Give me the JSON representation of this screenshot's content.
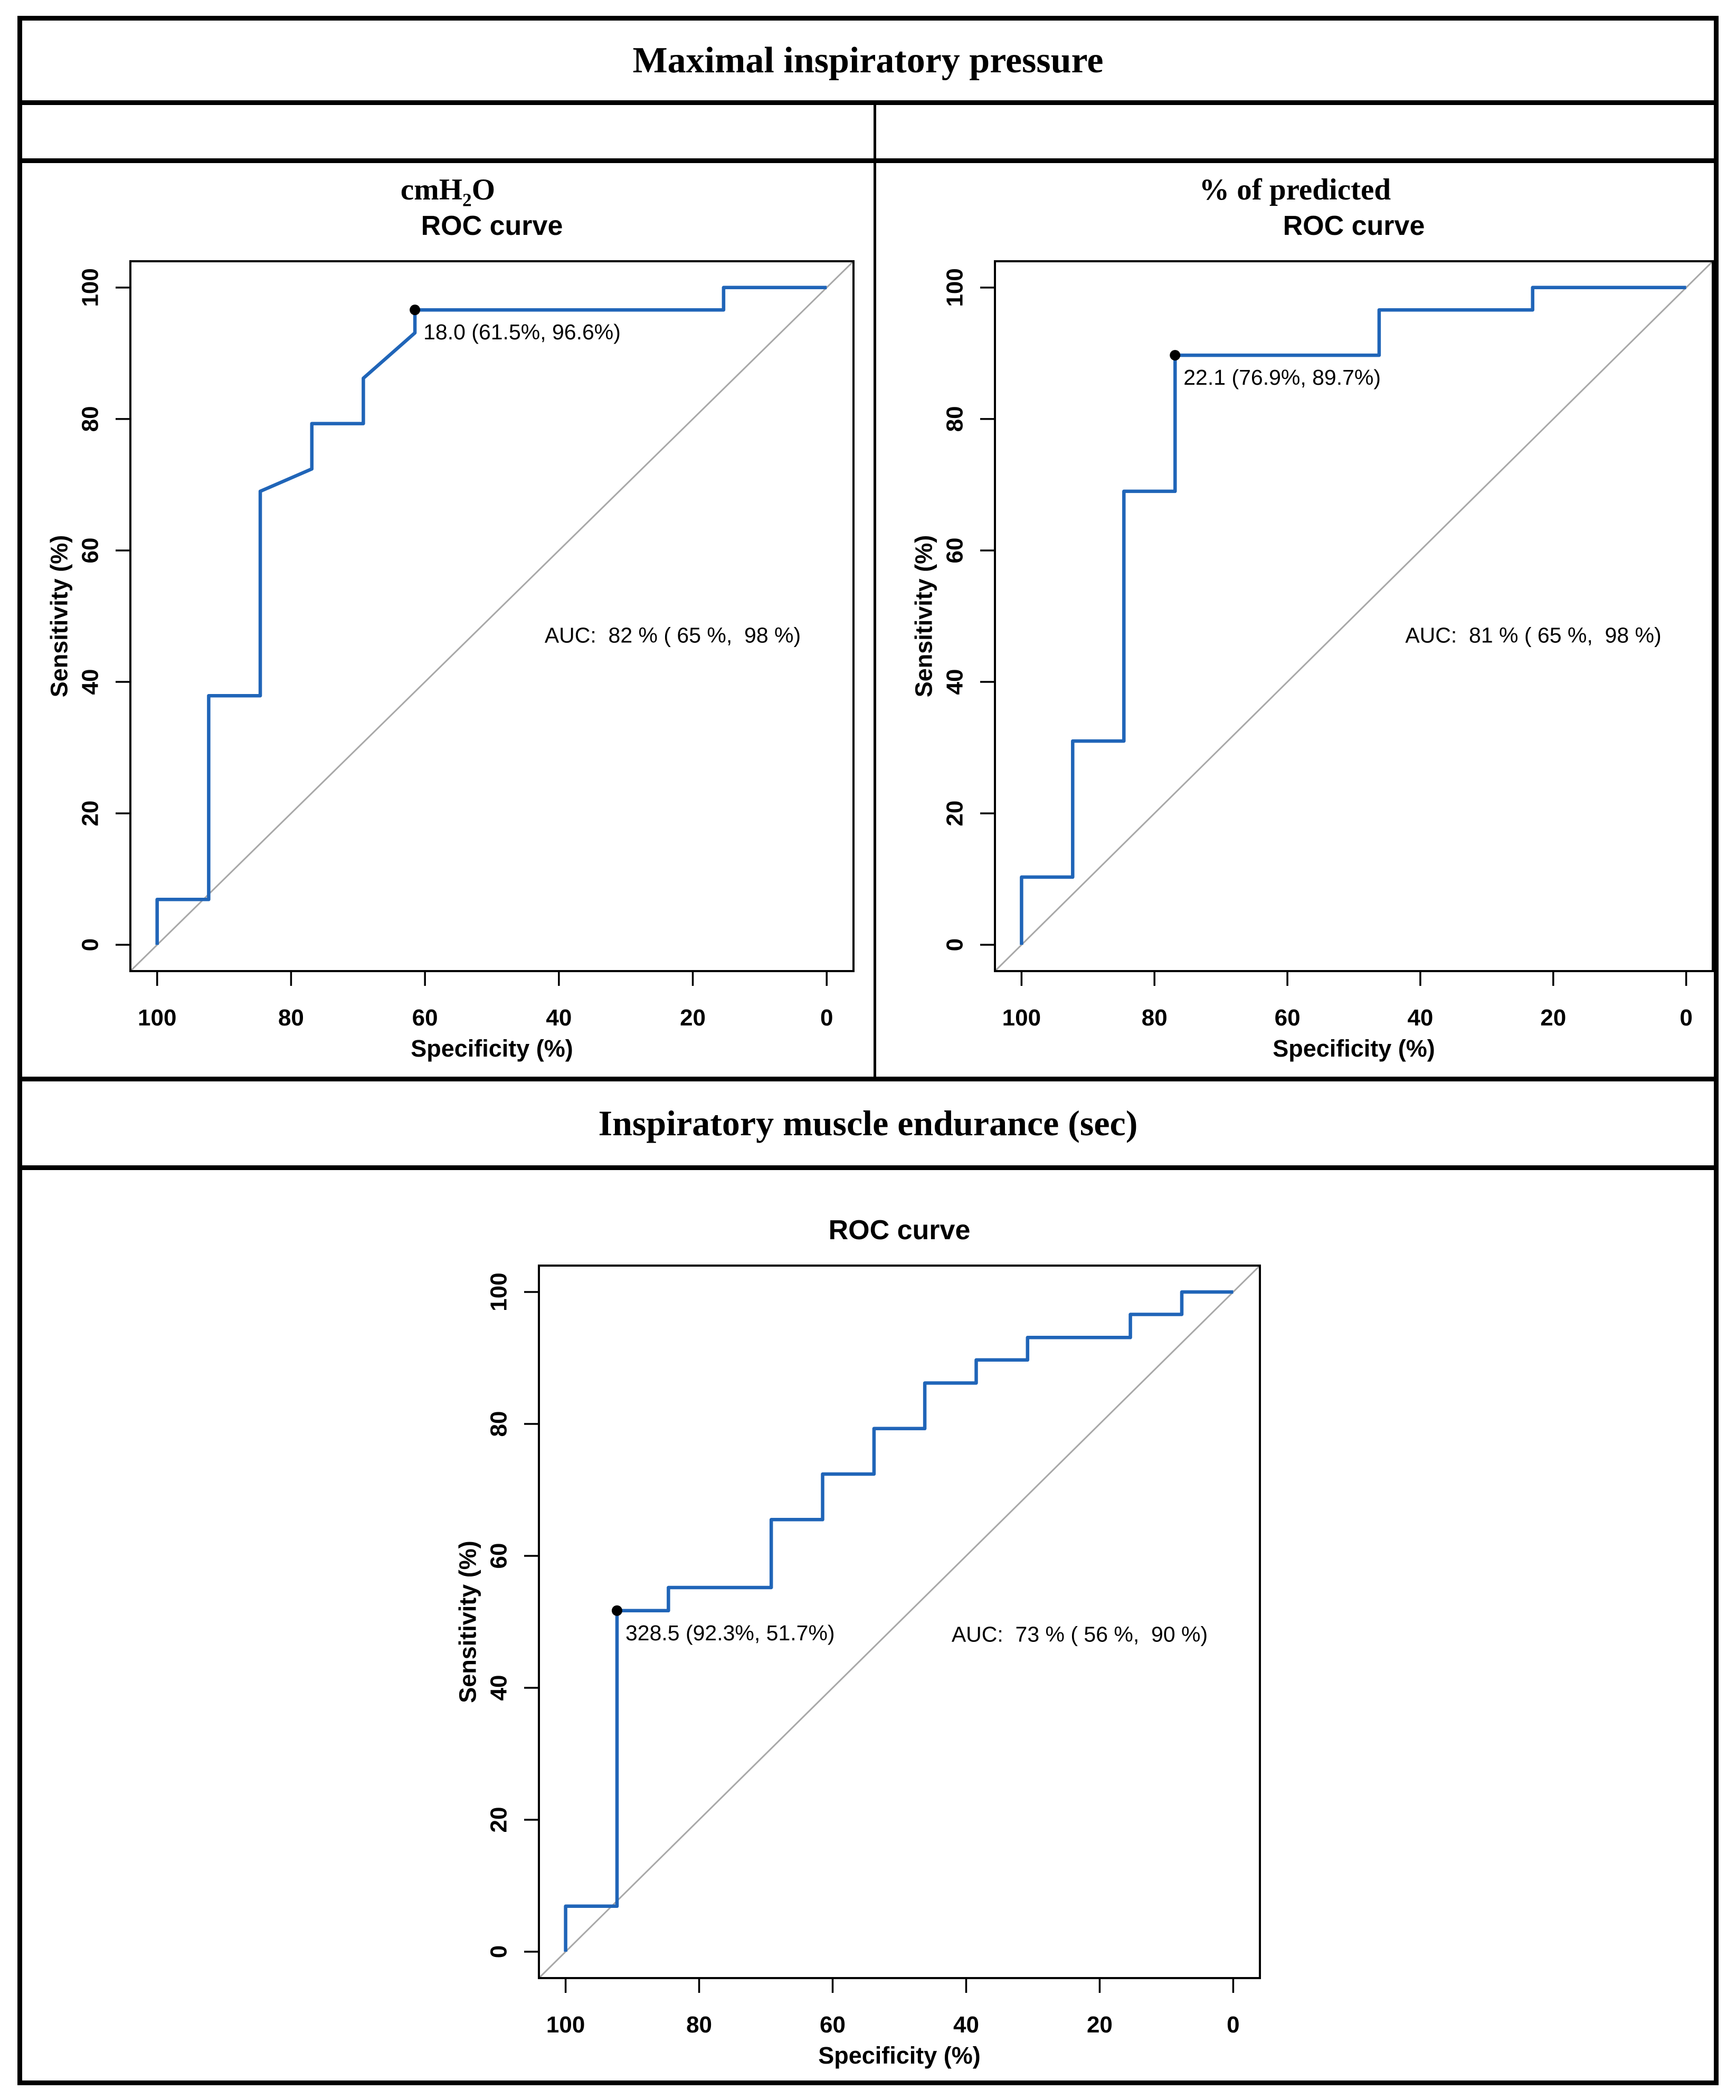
{
  "table": {
    "title_top": "Maximal inspiratory pressure",
    "header_left": {
      "pre": "cmH",
      "sub": "2",
      "post": "O"
    },
    "header_right": "% of predicted",
    "title_middle": "Inspiratory muscle endurance (sec)"
  },
  "colors": {
    "curve": "#2065b8",
    "diagonal": "#a8a8a8",
    "point": "#000000",
    "frame": "#000000",
    "background": "#ffffff"
  },
  "chart_data": [
    {
      "type": "line",
      "name": "roc-mip-cmh2o",
      "title": "ROC curve",
      "xlabel": "Specificity (%)",
      "ylabel": "Sensitivity (%)",
      "x_ticks": [
        100,
        80,
        60,
        40,
        20,
        0
      ],
      "y_ticks": [
        0,
        20,
        40,
        60,
        80,
        100
      ],
      "xlim": [
        100,
        0
      ],
      "ylim": [
        0,
        100
      ],
      "x_axis_reversed": true,
      "grid": false,
      "diagonal_reference": true,
      "auc_label": "AUC:  82 % ( 65 %,  98 %)",
      "threshold": {
        "value": "18.0",
        "label": "18.0 (61.5%, 96.6%)",
        "specificity": 61.5,
        "sensitivity": 96.6
      },
      "series": [
        {
          "name": "ROC",
          "points": [
            [
              100,
              0
            ],
            [
              100,
              6.9
            ],
            [
              92.3,
              6.9
            ],
            [
              92.3,
              37.9
            ],
            [
              84.6,
              37.9
            ],
            [
              84.6,
              69.0
            ],
            [
              76.9,
              72.4
            ],
            [
              76.9,
              79.3
            ],
            [
              69.2,
              79.3
            ],
            [
              69.2,
              86.2
            ],
            [
              61.5,
              93.1
            ],
            [
              61.5,
              96.6
            ],
            [
              15.4,
              96.6
            ],
            [
              15.4,
              100
            ],
            [
              0,
              100
            ]
          ]
        }
      ]
    },
    {
      "type": "line",
      "name": "roc-mip-percent-predicted",
      "title": "ROC curve",
      "xlabel": "Specificity (%)",
      "ylabel": "Sensitivity (%)",
      "x_ticks": [
        100,
        80,
        60,
        40,
        20,
        0
      ],
      "y_ticks": [
        0,
        20,
        40,
        60,
        80,
        100
      ],
      "xlim": [
        100,
        0
      ],
      "ylim": [
        0,
        100
      ],
      "x_axis_reversed": true,
      "grid": false,
      "diagonal_reference": true,
      "auc_label": "AUC:  81 % ( 65 %,  98 %)",
      "threshold": {
        "value": "22.1",
        "label": "22.1 (76.9%, 89.7%)",
        "specificity": 76.9,
        "sensitivity": 89.7
      },
      "series": [
        {
          "name": "ROC",
          "points": [
            [
              100,
              0
            ],
            [
              100,
              10.3
            ],
            [
              92.3,
              10.3
            ],
            [
              92.3,
              31.0
            ],
            [
              84.6,
              31.0
            ],
            [
              84.6,
              69.0
            ],
            [
              76.9,
              69.0
            ],
            [
              76.9,
              89.7
            ],
            [
              46.2,
              89.7
            ],
            [
              46.2,
              96.6
            ],
            [
              23.1,
              96.6
            ],
            [
              23.1,
              100
            ],
            [
              0,
              100
            ]
          ]
        }
      ]
    },
    {
      "type": "line",
      "name": "roc-inspiratory-muscle-endurance",
      "title": "ROC curve",
      "xlabel": "Specificity (%)",
      "ylabel": "Sensitivity (%)",
      "x_ticks": [
        100,
        80,
        60,
        40,
        20,
        0
      ],
      "y_ticks": [
        0,
        20,
        40,
        60,
        80,
        100
      ],
      "xlim": [
        100,
        0
      ],
      "ylim": [
        0,
        100
      ],
      "x_axis_reversed": true,
      "grid": false,
      "diagonal_reference": true,
      "auc_label": "AUC:  73 % ( 56 %,  90 %)",
      "threshold": {
        "value": "328.5",
        "label": "328.5 (92.3%, 51.7%)",
        "specificity": 92.3,
        "sensitivity": 51.7
      },
      "series": [
        {
          "name": "ROC",
          "points": [
            [
              100,
              0
            ],
            [
              100,
              6.9
            ],
            [
              92.3,
              6.9
            ],
            [
              92.3,
              51.7
            ],
            [
              84.6,
              51.7
            ],
            [
              84.6,
              55.2
            ],
            [
              69.2,
              55.2
            ],
            [
              69.2,
              65.5
            ],
            [
              61.5,
              65.5
            ],
            [
              61.5,
              72.4
            ],
            [
              53.8,
              72.4
            ],
            [
              53.8,
              79.3
            ],
            [
              46.2,
              79.3
            ],
            [
              46.2,
              86.2
            ],
            [
              38.5,
              86.2
            ],
            [
              38.5,
              89.7
            ],
            [
              30.8,
              89.7
            ],
            [
              30.8,
              93.1
            ],
            [
              15.4,
              93.1
            ],
            [
              15.4,
              96.6
            ],
            [
              7.7,
              96.6
            ],
            [
              7.7,
              100
            ],
            [
              0,
              100
            ]
          ]
        }
      ]
    }
  ]
}
